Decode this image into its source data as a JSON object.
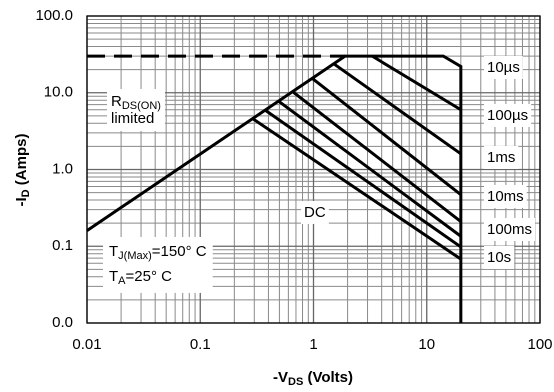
{
  "chart_data": {
    "type": "line",
    "xlabel": {
      "main": "-V",
      "sub": "DS",
      "rest": " (Volts)"
    },
    "ylabel": {
      "main": "-I",
      "sub": "D",
      "rest": " (Amps)"
    },
    "log_x": true,
    "log_y": true,
    "grid": true,
    "minor_grid": true,
    "xlim": [
      0.01,
      100
    ],
    "ylim": [
      0.01,
      100
    ],
    "xticks": [
      0.01,
      0.1,
      1,
      10,
      100
    ],
    "yticks": [
      {
        "value": 0.01,
        "label": "0.0"
      },
      0.1,
      {
        "value": 1,
        "label": "1.0"
      },
      {
        "value": 10,
        "label": "10.0"
      },
      {
        "value": 100,
        "label": "100.0"
      }
    ],
    "annotations": [
      {
        "main": "R",
        "sub": "DS(ON)",
        "line2": "limited"
      },
      {
        "main": "T",
        "sub": "J(Max)",
        "rest": "=150° C"
      },
      {
        "main": "T",
        "sub": "A",
        "rest": "=25° C"
      }
    ],
    "series": [
      {
        "color": "#000000",
        "dash": true,
        "x": [
          0.01,
          1.9
        ],
        "values": [
          30,
          30
        ]
      },
      {
        "color": "#000000",
        "x": [
          0.01,
          1.9,
          14,
          20,
          20
        ],
        "values": [
          0.16,
          30,
          30,
          22,
          0.01
        ]
      },
      {
        "name": "10µs",
        "color": "#000000",
        "x": [
          3.3,
          20
        ],
        "values": [
          30,
          6
        ]
      },
      {
        "name": "100µs",
        "color": "#000000",
        "x": [
          1.5,
          20
        ],
        "values": [
          24,
          1.6
        ]
      },
      {
        "name": "1ms",
        "color": "#000000",
        "x": [
          0.97,
          20
        ],
        "values": [
          15.5,
          0.47
        ]
      },
      {
        "name": "10ms",
        "color": "#000000",
        "x": [
          0.65,
          20
        ],
        "values": [
          10.4,
          0.21
        ]
      },
      {
        "name": "100ms",
        "color": "#000000",
        "x": [
          0.49,
          20
        ],
        "values": [
          7.8,
          0.135
        ]
      },
      {
        "name": "10s",
        "color": "#000000",
        "x": [
          0.37,
          20
        ],
        "values": [
          6,
          0.098
        ]
      },
      {
        "name": "DC",
        "color": "#000000",
        "x": [
          0.29,
          20
        ],
        "values": [
          4.6,
          0.068
        ]
      }
    ]
  }
}
